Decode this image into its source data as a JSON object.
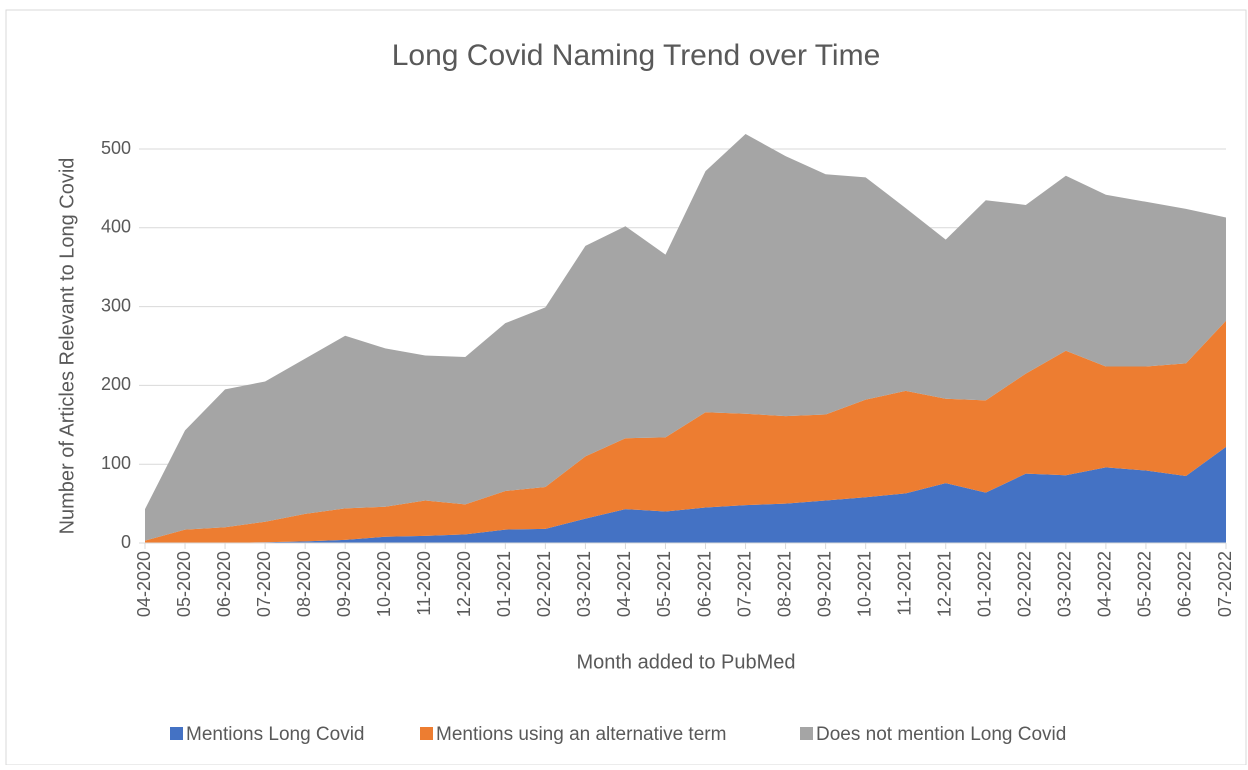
{
  "chart_data": {
    "type": "stacked-area",
    "title": "Long Covid Naming Trend over Time",
    "x_label": "Month added to PubMed",
    "y_label": "Number of Articles Relevant to Long Covid",
    "categories": [
      "04-2020",
      "05-2020",
      "06-2020",
      "07-2020",
      "08-2020",
      "09-2020",
      "10-2020",
      "11-2020",
      "12-2020",
      "01-2021",
      "02-2021",
      "03-2021",
      "04-2021",
      "05-2021",
      "06-2021",
      "07-2021",
      "08-2021",
      "09-2021",
      "10-2021",
      "11-2021",
      "12-2021",
      "01-2022",
      "02-2022",
      "03-2022",
      "04-2022",
      "05-2022",
      "06-2022",
      "07-2022"
    ],
    "series": [
      {
        "name": "Mentions Long Covid",
        "color": "#4472c4",
        "values": [
          0,
          0,
          0,
          1,
          2,
          4,
          8,
          9,
          11,
          17,
          18,
          31,
          43,
          40,
          45,
          48,
          50,
          54,
          58,
          63,
          76,
          64,
          88,
          86,
          96,
          92,
          85,
          122
        ]
      },
      {
        "name": "Mentions using an alternative term",
        "color": "#ed7d31",
        "values": [
          3,
          17,
          20,
          26,
          35,
          40,
          38,
          45,
          38,
          49,
          53,
          79,
          90,
          94,
          121,
          116,
          111,
          109,
          124,
          130,
          107,
          117,
          127,
          158,
          128,
          132,
          143,
          160
        ]
      },
      {
        "name": "Does not mention Long Covid",
        "color": "#a5a5a5",
        "values": [
          40,
          126,
          175,
          178,
          197,
          219,
          201,
          184,
          187,
          213,
          228,
          267,
          269,
          232,
          306,
          355,
          330,
          305,
          282,
          232,
          202,
          254,
          214,
          222,
          218,
          209,
          196,
          131
        ]
      }
    ],
    "ylim": [
      0,
      550
    ],
    "yticks": [
      0,
      100,
      200,
      300,
      400,
      500
    ],
    "grid": true,
    "legend": "bottom"
  }
}
